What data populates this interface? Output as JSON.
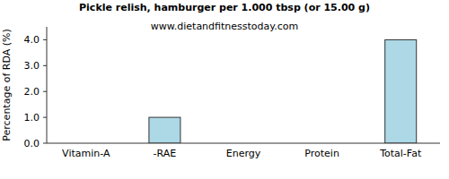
{
  "chart_data": {
    "type": "bar",
    "title": "Pickle relish, hamburger per 1.000 tbsp (or 15.00 g)",
    "subtitle": "www.dietandfitnesstoday.com",
    "y_label": "Percentage of RDA (%)",
    "categories": [
      "Vitamin-A",
      "-RAE",
      "Energy",
      "Protein",
      "Total-Fat"
    ],
    "values": [
      0,
      1,
      0,
      0,
      4
    ],
    "color": "#add8e6",
    "ylim": [
      0,
      4.5
    ],
    "yticks": [
      {
        "value": 0,
        "label": "0.0"
      },
      {
        "value": 1,
        "label": "1.0"
      },
      {
        "value": 2,
        "label": "2.0"
      },
      {
        "value": 3,
        "label": "3.0"
      },
      {
        "value": 4,
        "label": "4.0"
      }
    ],
    "grid": false
  }
}
